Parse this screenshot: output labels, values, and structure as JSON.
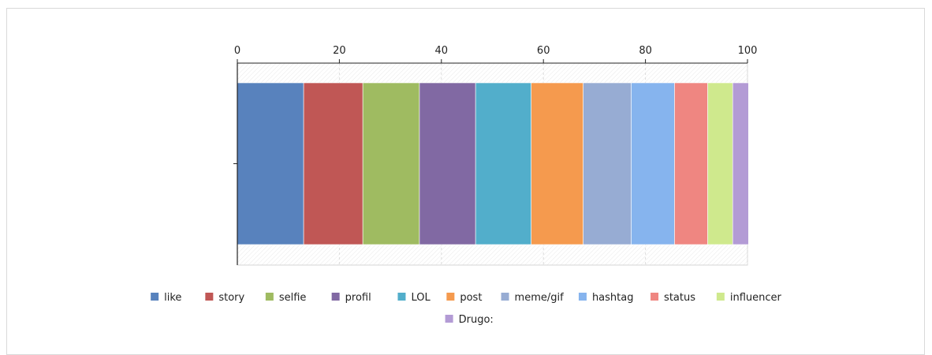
{
  "chart_data": {
    "type": "bar",
    "orientation": "horizontal",
    "stacked": true,
    "xlim": [
      0,
      100
    ],
    "xticks": [
      "0",
      "20",
      "40",
      "60",
      "80",
      "100"
    ],
    "x_axis_position": "top",
    "grid": true,
    "legend_position": "bottom",
    "series": [
      {
        "name": "like",
        "value": 13.0,
        "color": "#5882bd"
      },
      {
        "name": "story",
        "value": 11.6,
        "color": "#c05755"
      },
      {
        "name": "selfie",
        "value": 11.1,
        "color": "#9fbb61"
      },
      {
        "name": "profil",
        "value": 11.0,
        "color": "#8169a3"
      },
      {
        "name": "LOL",
        "value": 10.9,
        "color": "#52aecb"
      },
      {
        "name": "post",
        "value": 10.2,
        "color": "#f59a4e"
      },
      {
        "name": "meme/gif",
        "value": 9.4,
        "color": "#97acd3"
      },
      {
        "name": "hashtag",
        "value": 8.5,
        "color": "#86b4ee"
      },
      {
        "name": "status",
        "value": 6.5,
        "color": "#ef8681"
      },
      {
        "name": "influencer",
        "value": 4.9,
        "color": "#cfe98d"
      },
      {
        "name": "Drugo:",
        "value": 3.1,
        "color": "#b39bd5"
      }
    ]
  }
}
